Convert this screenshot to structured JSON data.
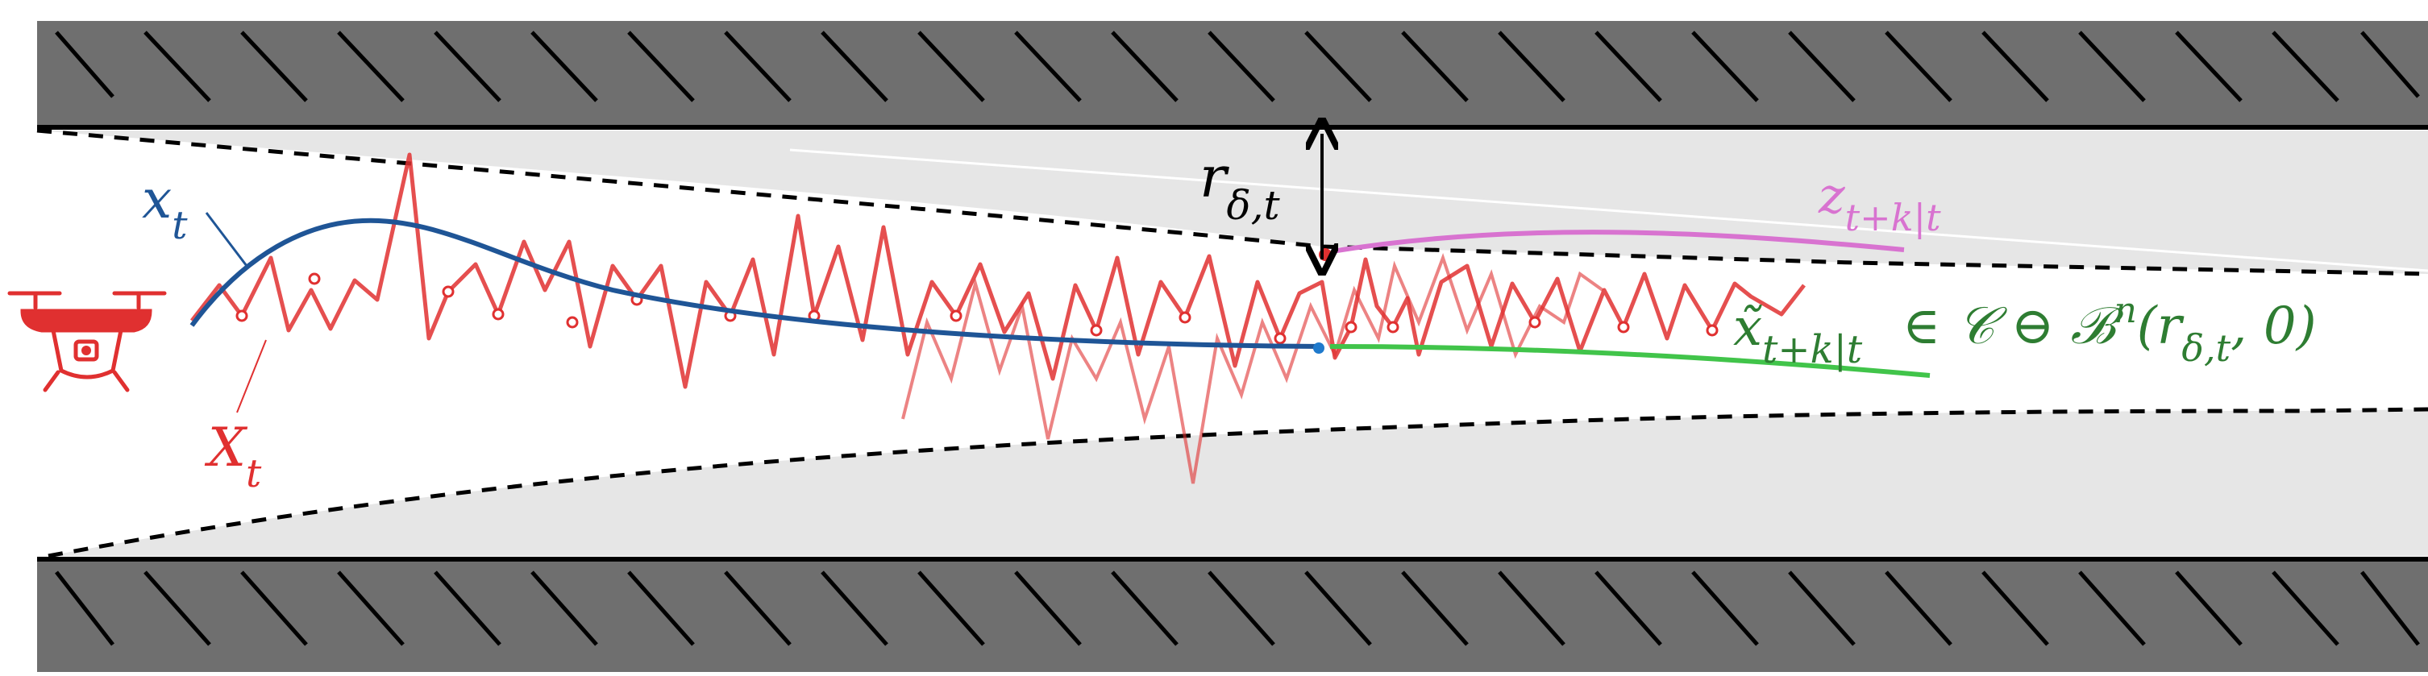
{
  "labels": {
    "x_main": "x",
    "x_sub": "t",
    "X_main": "X",
    "X_sub": "t",
    "r_main": "r",
    "r_sub": "δ,t",
    "z_main": "z",
    "z_sub": "t+k|t",
    "xt_main": "x̃",
    "xt_sub": "t+k|t",
    "constraint_text": " ∈ 𝒞 ⊖ ℬ",
    "constraint_sup": "n",
    "constraint_paren_open": "(r",
    "constraint_paren_sub": "δ,t",
    "constraint_paren_close": ", 0)"
  },
  "colors": {
    "wall": "#6f6f6f",
    "wall_edge": "#000000",
    "tube": "#e6e6e6",
    "blue": "#1f5596",
    "red": "#e03030",
    "magenta": "#d873d0",
    "green": "#41c44a",
    "green_text": "#2e7d32",
    "black": "#000000"
  },
  "icons": {
    "drone": "drone-icon"
  }
}
